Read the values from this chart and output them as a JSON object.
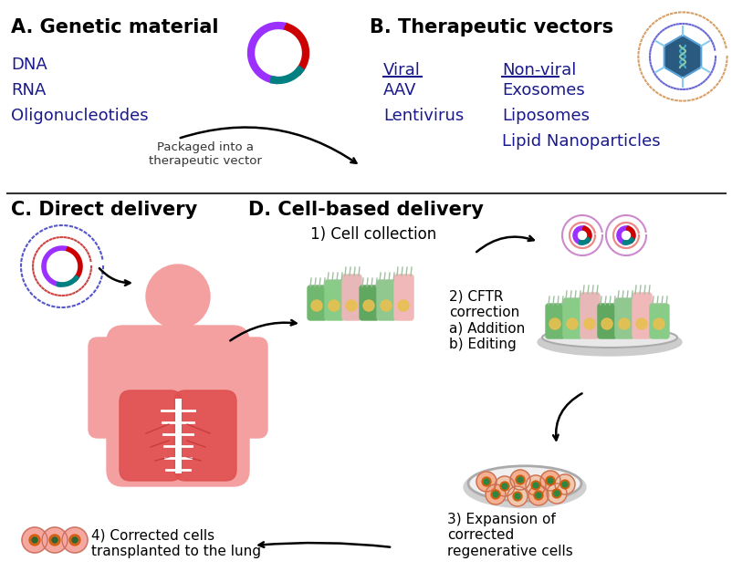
{
  "bg_color": "#ffffff",
  "section_A_title": "A. Genetic material",
  "section_B_title": "B. Therapeutic vectors",
  "section_C_title": "C. Direct delivery",
  "section_D_title": "D. Cell-based delivery",
  "dna_items": [
    "DNA",
    "RNA",
    "Oligonucleotides"
  ],
  "arrow_label": "Packaged into a\ntherapeutic vector",
  "viral_header": "Viral",
  "viral_items": [
    "AAV",
    "Lentivirus"
  ],
  "nonviral_header": "Non-viral",
  "nonviral_items": [
    "Exosomes",
    "Liposomes",
    "Lipid Nanoparticles"
  ],
  "cell_steps": [
    "1) Cell collection",
    "2) CFTR\ncorrection\na) Addition\nb) Editing",
    "3) Expansion of\ncorrected\nregenerative cells",
    "4) Corrected cells\ntransplanted to the lung"
  ],
  "plasmid_colors": [
    "#9b30ff",
    "#cc0000",
    "#008080"
  ],
  "human_body_color": "#f4a0a0",
  "lung_color": "#e05050",
  "text_color": "#000000"
}
